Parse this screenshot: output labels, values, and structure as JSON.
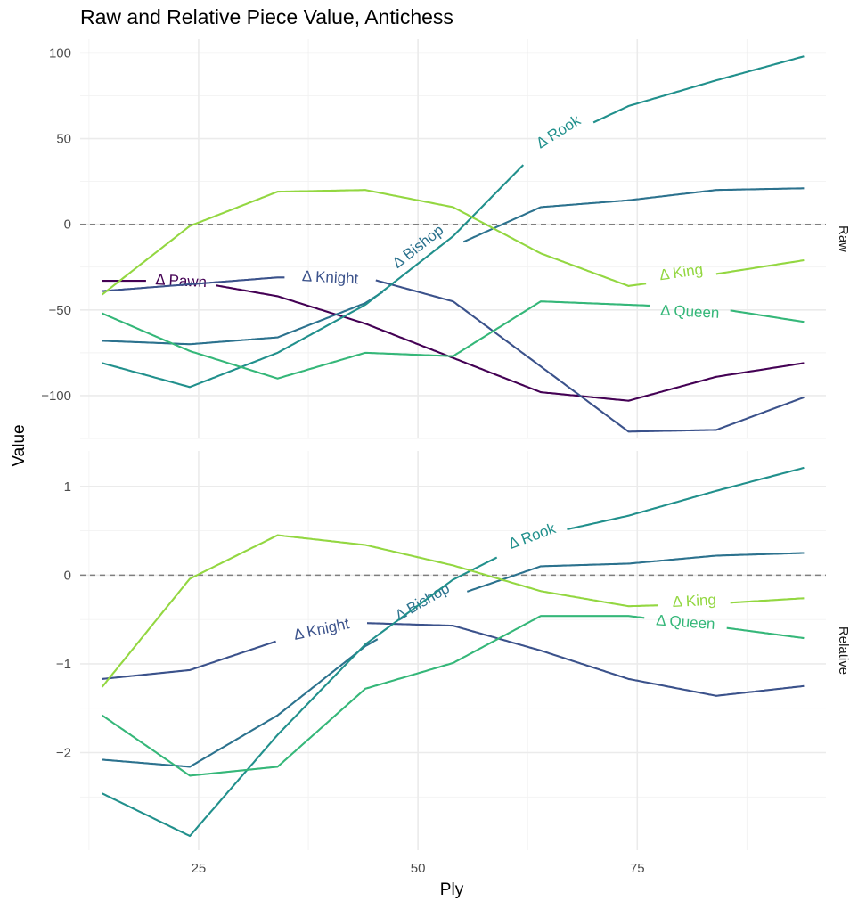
{
  "chart_data": {
    "type": "line",
    "title": "Raw and Relative Piece Value, Antichess",
    "xlabel": "Ply",
    "ylabel": "Value",
    "xlim": [
      11.5,
      96.5
    ],
    "x_ticks": [
      25,
      50,
      75
    ],
    "x": [
      14,
      24,
      34,
      44,
      54,
      64,
      74,
      84,
      94
    ],
    "panels": [
      {
        "name": "Raw",
        "strip_label": "Raw",
        "ylim": [
          -125,
          108
        ],
        "y_ticks": [
          100,
          50,
          0,
          -50,
          -100
        ],
        "y_tick_labels": [
          "100",
          "50",
          "0",
          "−50",
          "−100"
        ],
        "reference_line": 0,
        "series": [
          {
            "name": "Δ Pawn",
            "color": "#440154",
            "values": [
              -33,
              -33,
              -42,
              -58,
              -78,
              -98,
              -103,
              -89,
              -81
            ],
            "label": {
              "x": 23,
              "y": -33,
              "angle": 3
            }
          },
          {
            "name": "Δ Knight",
            "color": "#3b528b",
            "values": [
              -39,
              -35,
              -31,
              -31,
              -45,
              -83,
              -121,
              -120,
              -101
            ],
            "label": {
              "x": 40,
              "y": -31,
              "angle": 3
            }
          },
          {
            "name": "Δ Bishop",
            "color": "#2c728e",
            "values": [
              -68,
              -70,
              -66,
              -46,
              -13,
              10,
              14,
              20,
              21
            ],
            "label": {
              "x": 50,
              "y": -13,
              "angle": -38
            }
          },
          {
            "name": "Δ Rook",
            "color": "#21908c",
            "values": [
              -81,
              -95,
              -75,
              -47,
              -7,
              45,
              69,
              84,
              98
            ],
            "label": {
              "x": 66,
              "y": 54,
              "angle": -32
            }
          },
          {
            "name": "Δ Queen",
            "color": "#35b779",
            "values": [
              -52,
              -74,
              -90,
              -75,
              -77,
              -45,
              -47,
              -49,
              -57
            ],
            "label": {
              "x": 81,
              "y": -51,
              "angle": 3
            }
          },
          {
            "name": "Δ King",
            "color": "#93d741",
            "values": [
              -41,
              -1,
              19,
              20,
              10,
              -17,
              -36,
              -29,
              -21
            ],
            "label": {
              "x": 80,
              "y": -28,
              "angle": -8
            }
          }
        ]
      },
      {
        "name": "Relative",
        "strip_label": "Relative",
        "ylim": [
          -3.1,
          1.4
        ],
        "y_ticks": [
          1,
          0,
          -1,
          -2
        ],
        "y_tick_labels": [
          "1",
          "0",
          "−1",
          "−2"
        ],
        "reference_line": 0,
        "series": [
          {
            "name": "Δ Knight",
            "color": "#3b528b",
            "values": [
              -1.17,
              -1.07,
              -0.74,
              -0.54,
              -0.57,
              -0.85,
              -1.17,
              -1.36,
              -1.25
            ],
            "label": {
              "x": 39,
              "y": -0.61,
              "angle": -12
            }
          },
          {
            "name": "Δ Bishop",
            "color": "#2c728e",
            "values": [
              -2.08,
              -2.16,
              -1.58,
              -0.8,
              -0.24,
              0.1,
              0.13,
              0.22,
              0.25
            ],
            "label": {
              "x": 50.5,
              "y": -0.3,
              "angle": -30
            }
          },
          {
            "name": "Δ Rook",
            "color": "#21908c",
            "values": [
              -2.46,
              -2.94,
              -1.8,
              -0.78,
              -0.05,
              0.45,
              0.67,
              0.95,
              1.21
            ],
            "label": {
              "x": 63,
              "y": 0.44,
              "angle": -20
            }
          },
          {
            "name": "Δ Queen",
            "color": "#35b779",
            "values": [
              -1.58,
              -2.26,
              -2.16,
              -1.28,
              -0.99,
              -0.46,
              -0.46,
              -0.58,
              -0.71
            ],
            "label": {
              "x": 80.5,
              "y": -0.53,
              "angle": 4
            }
          },
          {
            "name": "Δ King",
            "color": "#93d741",
            "values": [
              -1.26,
              -0.04,
              0.45,
              0.34,
              0.11,
              -0.18,
              -0.35,
              -0.32,
              -0.26
            ],
            "label": {
              "x": 81.5,
              "y": -0.29,
              "angle": -3
            }
          }
        ]
      }
    ]
  }
}
